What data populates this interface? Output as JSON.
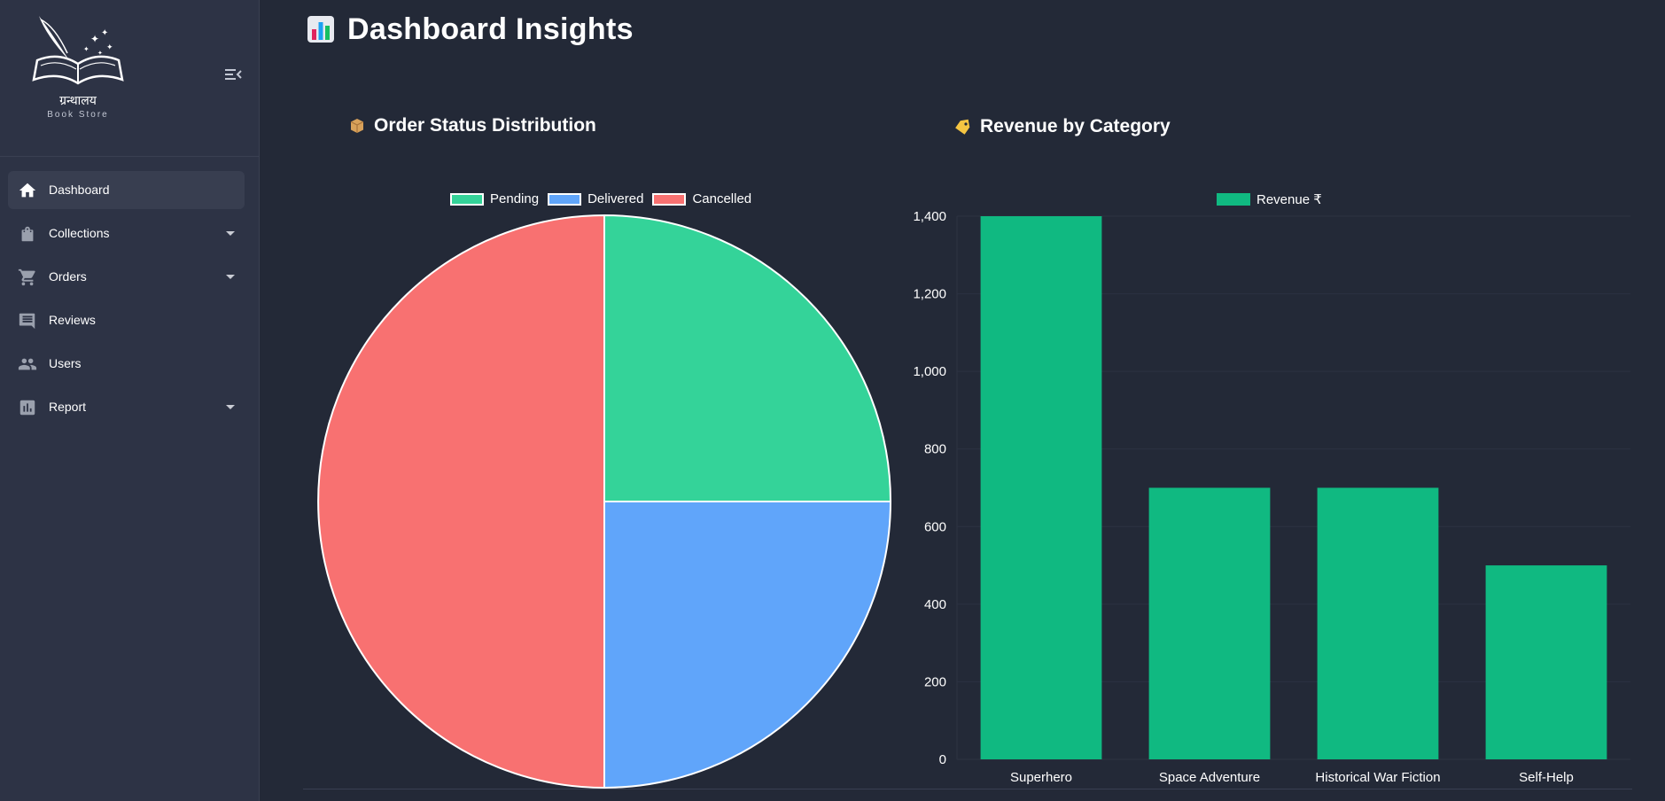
{
  "sidebar": {
    "logo": {
      "title": "ग्रन्थालय",
      "subtitle": "Book Store"
    },
    "items": [
      {
        "label": "Dashboard",
        "icon": "home-icon",
        "active": true,
        "has_submenu": false
      },
      {
        "label": "Collections",
        "icon": "bag-icon",
        "active": false,
        "has_submenu": true
      },
      {
        "label": "Orders",
        "icon": "cart-icon",
        "active": false,
        "has_submenu": true
      },
      {
        "label": "Reviews",
        "icon": "comment-icon",
        "active": false,
        "has_submenu": false
      },
      {
        "label": "Users",
        "icon": "users-icon",
        "active": false,
        "has_submenu": false
      },
      {
        "label": "Report",
        "icon": "report-icon",
        "active": false,
        "has_submenu": true
      }
    ]
  },
  "page": {
    "title": "Dashboard Insights",
    "icon": "bar-chart-icon"
  },
  "colors": {
    "accent_green": "#10b981",
    "pending": "#34d399",
    "delivered": "#60a5fa",
    "cancelled": "#f87171"
  },
  "chart_data": [
    {
      "type": "pie",
      "title": "Order Status Distribution",
      "title_icon": "package-icon",
      "legend_position": "top",
      "labels": [
        "Pending",
        "Delivered",
        "Cancelled"
      ],
      "values": [
        1,
        1,
        2
      ],
      "colors": [
        "#34d399",
        "#60a5fa",
        "#f87171"
      ]
    },
    {
      "type": "bar",
      "title": "Revenue by Category",
      "title_icon": "tag-icon",
      "legend_position": "top",
      "series": [
        {
          "name": "Revenue ₹",
          "color": "#10b981",
          "values": [
            1400,
            700,
            700,
            500
          ]
        }
      ],
      "categories": [
        "Superhero",
        "Space Adventure",
        "Historical War Fiction",
        "Self-Help"
      ],
      "yticks": [
        "0",
        "200",
        "400",
        "600",
        "800",
        "1,000",
        "1,200",
        "1,400"
      ],
      "ylim": [
        0,
        1400
      ],
      "grid": true
    }
  ]
}
